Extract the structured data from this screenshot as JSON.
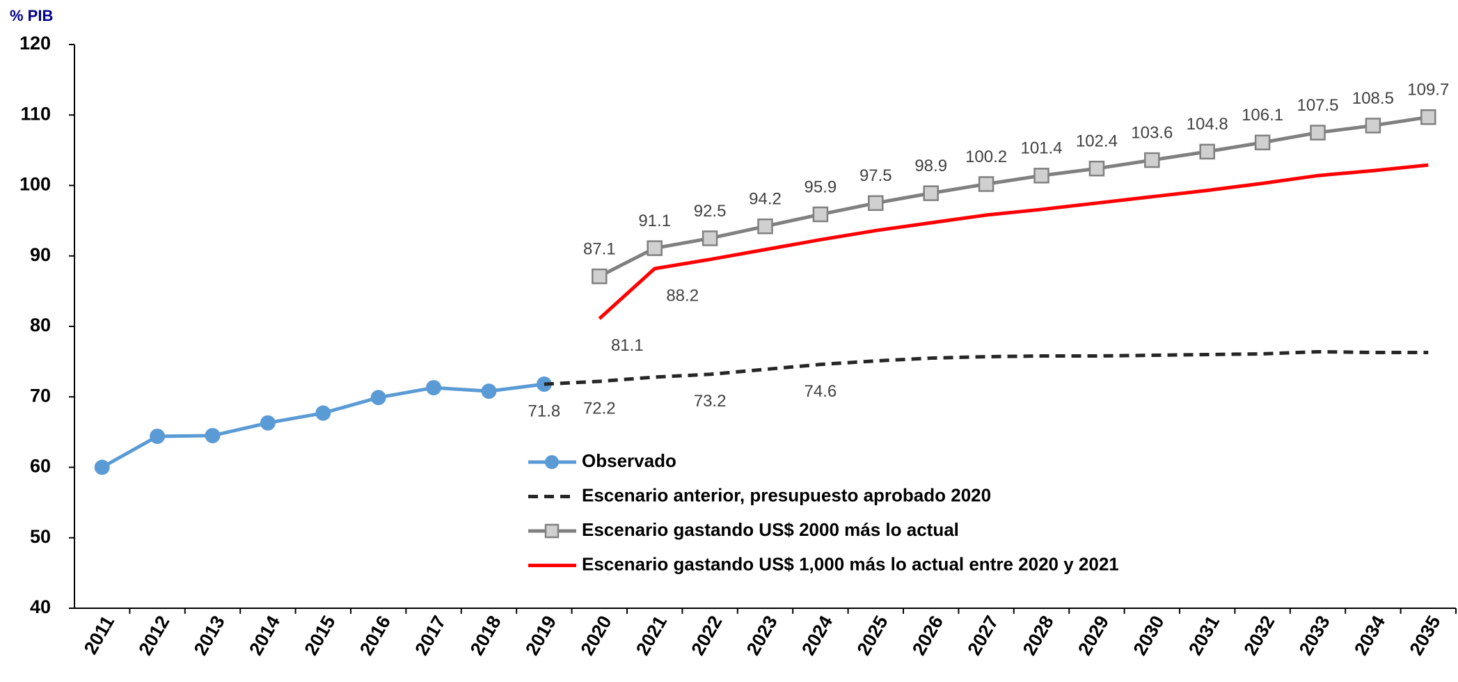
{
  "chart_data": {
    "type": "line",
    "y_label": "% PIB",
    "categories": [
      "2011",
      "2012",
      "2013",
      "2014",
      "2015",
      "2016",
      "2017",
      "2018",
      "2019",
      "2020",
      "2021",
      "2022",
      "2023",
      "2024",
      "2025",
      "2026",
      "2027",
      "2028",
      "2029",
      "2030",
      "2031",
      "2032",
      "2033",
      "2034",
      "2035"
    ],
    "ylim": [
      40,
      120
    ],
    "yticks": [
      40,
      50,
      60,
      70,
      80,
      90,
      100,
      110,
      120
    ],
    "series": [
      {
        "name": "Observado",
        "color": "#5b9bd5",
        "marker": "circle",
        "dash": false,
        "values": [
          60,
          64.4,
          64.5,
          66.3,
          67.7,
          69.9,
          71.3,
          70.8,
          71.8,
          null,
          null,
          null,
          null,
          null,
          null,
          null,
          null,
          null,
          null,
          null,
          null,
          null,
          null,
          null,
          null
        ],
        "value_labels": [
          null,
          null,
          null,
          null,
          null,
          null,
          null,
          null,
          "71.8",
          null,
          null,
          null,
          null,
          null,
          null,
          null,
          null,
          null,
          null,
          null,
          null,
          null,
          null,
          null,
          null
        ]
      },
      {
        "name": "Escenario anterior, presupuesto aprobado 2020",
        "color": "#262626",
        "marker": "none",
        "dash": true,
        "values": [
          null,
          null,
          null,
          null,
          null,
          null,
          null,
          null,
          71.8,
          72.2,
          72.8,
          73.2,
          73.9,
          74.6,
          75.1,
          75.5,
          75.7,
          75.8,
          75.8,
          75.9,
          76.0,
          76.1,
          76.4,
          76.3,
          76.3
        ],
        "value_labels": [
          null,
          null,
          null,
          null,
          null,
          null,
          null,
          null,
          null,
          "72.2",
          null,
          "73.2",
          null,
          "74.6",
          null,
          null,
          null,
          null,
          null,
          null,
          null,
          null,
          null,
          null,
          null
        ]
      },
      {
        "name": "Escenario gastando US$ 2000 más lo actual",
        "color": "#808080",
        "marker": "square",
        "dash": false,
        "values": [
          null,
          null,
          null,
          null,
          null,
          null,
          null,
          null,
          null,
          87.1,
          91.1,
          92.5,
          94.2,
          95.9,
          97.5,
          98.9,
          100.2,
          101.4,
          102.4,
          103.6,
          104.8,
          106.1,
          107.5,
          108.5,
          109.7
        ],
        "value_labels": [
          null,
          null,
          null,
          null,
          null,
          null,
          null,
          null,
          null,
          "87.1",
          "91.1",
          "92.5",
          "94.2",
          "95.9",
          "97.5",
          "98.9",
          "100.2",
          "101.4",
          "102.4",
          "103.6",
          "104.8",
          "106.1",
          "107.5",
          "108.5",
          "109.7"
        ]
      },
      {
        "name": "Escenario gastando US$ 1,000 más lo actual entre 2020 y 2021",
        "color": "#ff0000",
        "marker": "none",
        "dash": false,
        "values": [
          null,
          null,
          null,
          null,
          null,
          null,
          null,
          null,
          null,
          81.1,
          88.2,
          89.5,
          90.9,
          92.3,
          93.6,
          94.7,
          95.8,
          96.6,
          97.5,
          98.4,
          99.3,
          100.3,
          101.4,
          102.1,
          102.9
        ],
        "value_labels": [
          null,
          null,
          null,
          null,
          null,
          null,
          null,
          null,
          null,
          "81.1",
          "88.2",
          null,
          null,
          null,
          null,
          null,
          null,
          null,
          null,
          null,
          null,
          null,
          null,
          null,
          null
        ]
      }
    ]
  }
}
